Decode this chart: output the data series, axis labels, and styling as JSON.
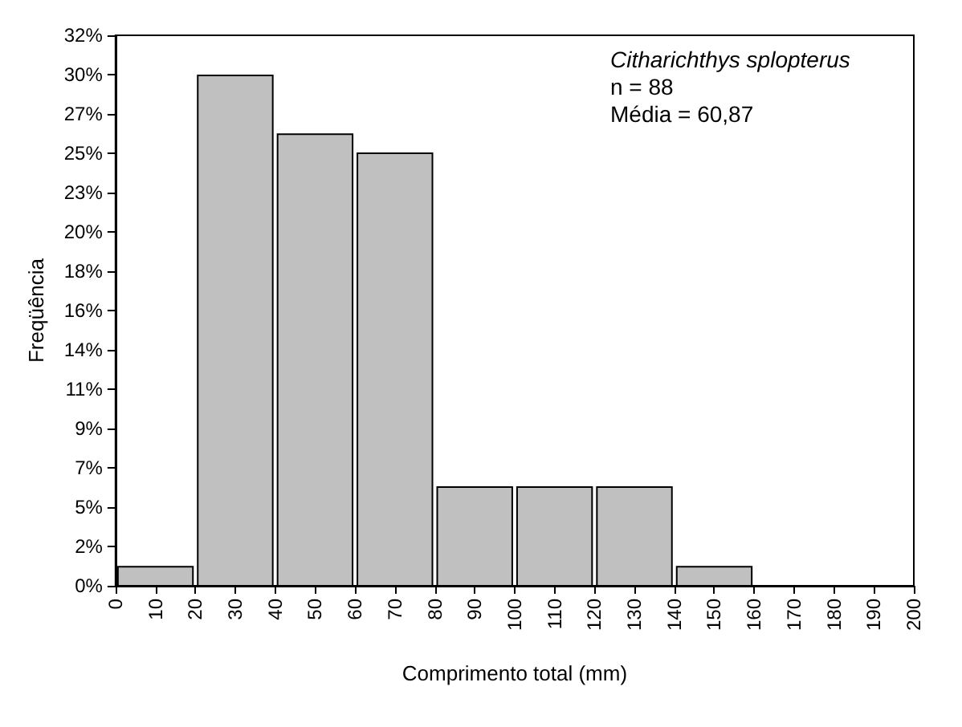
{
  "chart_data": {
    "type": "histogram",
    "xlabel": "Comprimento total (mm)",
    "ylabel": "Freqüência",
    "annotations": [
      "Citharichthys splopterus",
      "n = 88",
      "Média = 60,87"
    ],
    "bins": [
      0,
      20,
      40,
      60,
      80,
      100,
      120,
      140,
      160
    ],
    "values": [
      1.1,
      29.5,
      26.1,
      25,
      5.7,
      5.7,
      5.7,
      1.1
    ],
    "color": "#c0c0c0",
    "xlim": [
      0,
      200
    ],
    "xticks": [
      0,
      10,
      20,
      30,
      40,
      50,
      60,
      70,
      80,
      90,
      100,
      110,
      120,
      130,
      140,
      150,
      160,
      170,
      180,
      190,
      200
    ],
    "ylim": [
      0,
      31.82
    ],
    "yticks": [
      {
        "value": 0,
        "label": "0%"
      },
      {
        "value": 2.27,
        "label": "2%"
      },
      {
        "value": 4.55,
        "label": "5%"
      },
      {
        "value": 6.82,
        "label": "7%"
      },
      {
        "value": 9.09,
        "label": "9%"
      },
      {
        "value": 11.36,
        "label": "11%"
      },
      {
        "value": 13.64,
        "label": "14%"
      },
      {
        "value": 15.91,
        "label": "16%"
      },
      {
        "value": 18.18,
        "label": "18%"
      },
      {
        "value": 20.45,
        "label": "20%"
      },
      {
        "value": 22.73,
        "label": "23%"
      },
      {
        "value": 25,
        "label": "25%"
      },
      {
        "value": 27.27,
        "label": "27%"
      },
      {
        "value": 29.55,
        "label": "30%"
      },
      {
        "value": 31.82,
        "label": "32%"
      }
    ],
    "grid": false
  }
}
